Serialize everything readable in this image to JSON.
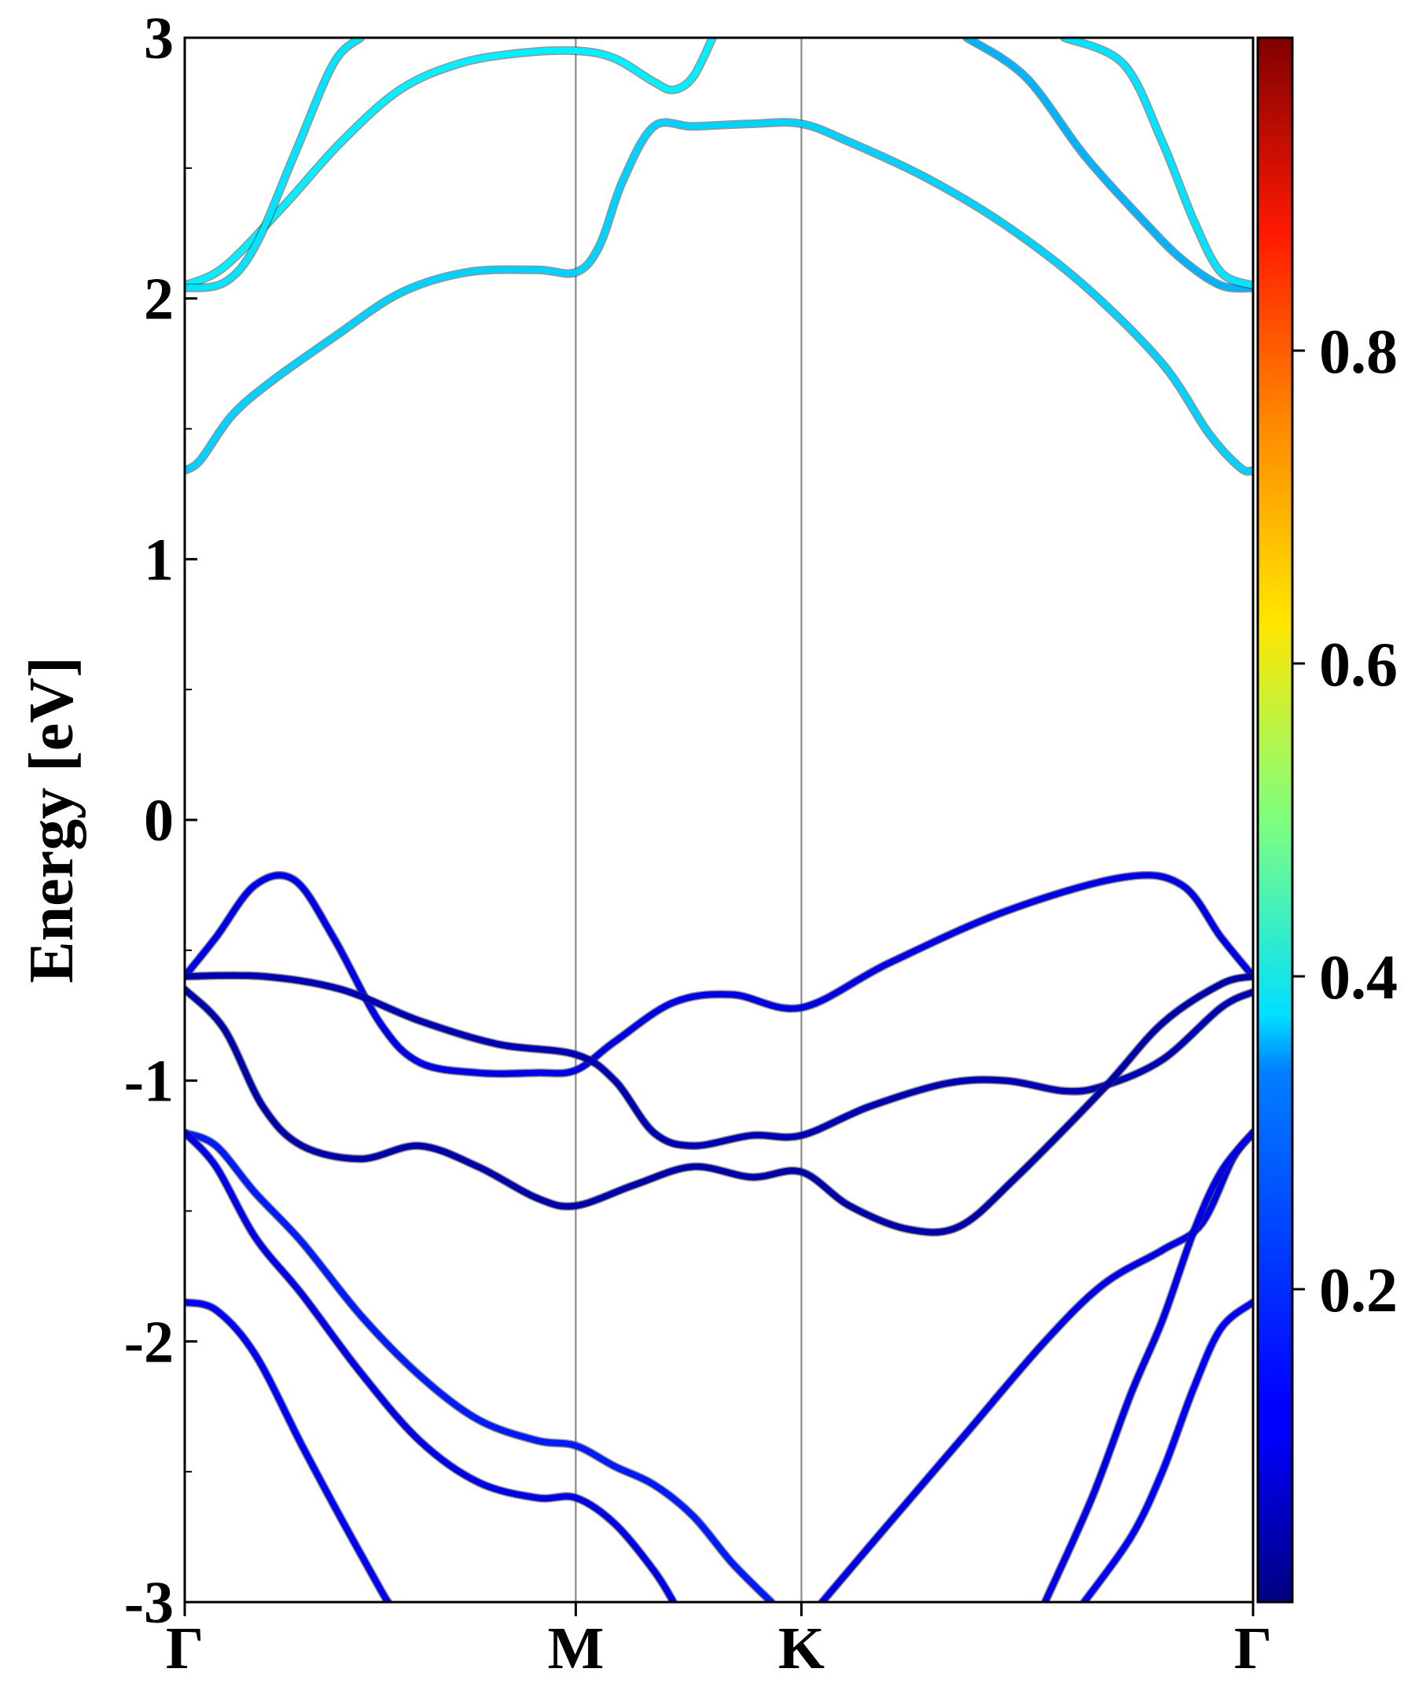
{
  "chart_data": {
    "type": "line",
    "title": "",
    "xlabel": "",
    "ylabel": "Energy [eV]",
    "ylim": [
      -3,
      3
    ],
    "yticks": [
      -3,
      -2,
      -1,
      0,
      1,
      2,
      3
    ],
    "yticklabels": [
      "-3",
      "-2",
      "-1",
      "0",
      "1",
      "2",
      "3"
    ],
    "xticks": [
      0,
      1,
      1.577,
      2.732
    ],
    "xticklabels": [
      "Γ",
      "M",
      "K",
      "Γ"
    ],
    "xlim": [
      0,
      2.732
    ],
    "grid": false,
    "vlines_at": [
      1,
      1.577
    ],
    "colorbar": {
      "colormap": "jet",
      "range": [
        0,
        1
      ],
      "ticks": [
        0.2,
        0.4,
        0.6,
        0.8
      ],
      "ticklabels": [
        "0.2",
        "0.4",
        "0.6",
        "0.8"
      ]
    },
    "series": [
      {
        "color_value": 0.33,
        "points": [
          [
            0,
            1.34
          ],
          [
            0.04,
            1.38
          ],
          [
            0.12,
            1.55
          ],
          [
            0.22,
            1.68
          ],
          [
            0.38,
            1.85
          ],
          [
            0.55,
            2.02
          ],
          [
            0.72,
            2.1
          ],
          [
            0.9,
            2.11
          ],
          [
            1.0,
            2.1
          ],
          [
            1.06,
            2.2
          ],
          [
            1.12,
            2.45
          ],
          [
            1.2,
            2.66
          ],
          [
            1.3,
            2.66
          ],
          [
            1.45,
            2.67
          ],
          [
            1.577,
            2.67
          ],
          [
            1.7,
            2.6
          ],
          [
            1.9,
            2.46
          ],
          [
            2.1,
            2.28
          ],
          [
            2.3,
            2.05
          ],
          [
            2.5,
            1.75
          ],
          [
            2.62,
            1.48
          ],
          [
            2.7,
            1.35
          ],
          [
            2.732,
            1.34
          ]
        ]
      },
      {
        "color_value": 0.36,
        "points": [
          [
            0,
            2.05
          ],
          [
            0.1,
            2.12
          ],
          [
            0.25,
            2.35
          ],
          [
            0.4,
            2.6
          ],
          [
            0.55,
            2.8
          ],
          [
            0.7,
            2.9
          ],
          [
            0.85,
            2.94
          ],
          [
            1.0,
            2.95
          ],
          [
            1.1,
            2.92
          ],
          [
            1.2,
            2.83
          ],
          [
            1.25,
            2.8
          ],
          [
            1.3,
            2.85
          ],
          [
            1.35,
            3.0
          ]
        ]
      },
      {
        "color_value": 0.35,
        "points": [
          [
            0,
            2.04
          ],
          [
            0.1,
            2.06
          ],
          [
            0.18,
            2.2
          ],
          [
            0.28,
            2.55
          ],
          [
            0.38,
            2.9
          ],
          [
            0.45,
            3.0
          ]
        ]
      },
      {
        "color_value": 0.3,
        "points": [
          [
            2.0,
            3.0
          ],
          [
            2.15,
            2.85
          ],
          [
            2.3,
            2.55
          ],
          [
            2.45,
            2.3
          ],
          [
            2.55,
            2.15
          ],
          [
            2.65,
            2.05
          ],
          [
            2.732,
            2.04
          ]
        ]
      },
      {
        "color_value": 0.35,
        "points": [
          [
            2.25,
            3.0
          ],
          [
            2.4,
            2.9
          ],
          [
            2.5,
            2.6
          ],
          [
            2.58,
            2.3
          ],
          [
            2.65,
            2.1
          ],
          [
            2.732,
            2.05
          ]
        ]
      },
      {
        "color_value": 0.1,
        "points": [
          [
            0,
            -0.6
          ],
          [
            0.08,
            -0.45
          ],
          [
            0.18,
            -0.25
          ],
          [
            0.28,
            -0.23
          ],
          [
            0.38,
            -0.45
          ],
          [
            0.5,
            -0.78
          ],
          [
            0.6,
            -0.93
          ],
          [
            0.75,
            -0.97
          ],
          [
            0.9,
            -0.97
          ],
          [
            1.0,
            -0.96
          ],
          [
            1.1,
            -0.85
          ],
          [
            1.25,
            -0.7
          ],
          [
            1.4,
            -0.67
          ],
          [
            1.577,
            -0.72
          ],
          [
            1.8,
            -0.55
          ],
          [
            2.1,
            -0.35
          ],
          [
            2.4,
            -0.22
          ],
          [
            2.55,
            -0.25
          ],
          [
            2.65,
            -0.45
          ],
          [
            2.732,
            -0.6
          ]
        ]
      },
      {
        "color_value": 0.05,
        "points": [
          [
            0,
            -0.6
          ],
          [
            0.2,
            -0.6
          ],
          [
            0.4,
            -0.65
          ],
          [
            0.6,
            -0.77
          ],
          [
            0.8,
            -0.86
          ],
          [
            1.0,
            -0.9
          ],
          [
            1.1,
            -1.0
          ],
          [
            1.2,
            -1.2
          ],
          [
            1.3,
            -1.25
          ],
          [
            1.45,
            -1.21
          ],
          [
            1.577,
            -1.21
          ],
          [
            1.75,
            -1.1
          ],
          [
            1.95,
            -1.01
          ],
          [
            2.1,
            -1.0
          ],
          [
            2.25,
            -1.04
          ],
          [
            2.35,
            -1.02
          ],
          [
            2.5,
            -0.92
          ],
          [
            2.65,
            -0.72
          ],
          [
            2.732,
            -0.66
          ]
        ]
      },
      {
        "color_value": 0.04,
        "points": [
          [
            0,
            -0.65
          ],
          [
            0.1,
            -0.8
          ],
          [
            0.2,
            -1.1
          ],
          [
            0.3,
            -1.25
          ],
          [
            0.45,
            -1.3
          ],
          [
            0.6,
            -1.25
          ],
          [
            0.75,
            -1.33
          ],
          [
            0.9,
            -1.45
          ],
          [
            1.0,
            -1.48
          ],
          [
            1.15,
            -1.4
          ],
          [
            1.3,
            -1.33
          ],
          [
            1.45,
            -1.37
          ],
          [
            1.577,
            -1.35
          ],
          [
            1.7,
            -1.48
          ],
          [
            1.85,
            -1.57
          ],
          [
            1.98,
            -1.56
          ],
          [
            2.12,
            -1.38
          ],
          [
            2.35,
            -1.03
          ],
          [
            2.5,
            -0.78
          ],
          [
            2.65,
            -0.63
          ],
          [
            2.732,
            -0.6
          ]
        ]
      },
      {
        "color_value": 0.15,
        "points": [
          [
            0,
            -1.2
          ],
          [
            0.08,
            -1.25
          ],
          [
            0.18,
            -1.43
          ],
          [
            0.3,
            -1.62
          ],
          [
            0.45,
            -1.9
          ],
          [
            0.6,
            -2.13
          ],
          [
            0.75,
            -2.3
          ],
          [
            0.9,
            -2.38
          ],
          [
            1.0,
            -2.4
          ],
          [
            1.1,
            -2.48
          ],
          [
            1.2,
            -2.55
          ],
          [
            1.3,
            -2.67
          ],
          [
            1.4,
            -2.85
          ],
          [
            1.5,
            -3.0
          ]
        ]
      },
      {
        "color_value": 0.1,
        "points": [
          [
            0,
            -1.2
          ],
          [
            0.08,
            -1.33
          ],
          [
            0.18,
            -1.6
          ],
          [
            0.3,
            -1.82
          ],
          [
            0.45,
            -2.12
          ],
          [
            0.6,
            -2.38
          ],
          [
            0.75,
            -2.54
          ],
          [
            0.9,
            -2.6
          ],
          [
            1.0,
            -2.6
          ],
          [
            1.1,
            -2.7
          ],
          [
            1.2,
            -2.88
          ],
          [
            1.25,
            -3.0
          ]
        ]
      },
      {
        "color_value": 0.12,
        "points": [
          [
            0,
            -1.85
          ],
          [
            0.08,
            -1.88
          ],
          [
            0.18,
            -2.05
          ],
          [
            0.3,
            -2.4
          ],
          [
            0.4,
            -2.68
          ],
          [
            0.5,
            -2.95
          ],
          [
            0.52,
            -3.0
          ]
        ]
      },
      {
        "color_value": 0.1,
        "points": [
          [
            1.63,
            -3.0
          ],
          [
            1.8,
            -2.7
          ],
          [
            2.0,
            -2.35
          ],
          [
            2.2,
            -2.0
          ],
          [
            2.35,
            -1.78
          ],
          [
            2.5,
            -1.65
          ],
          [
            2.6,
            -1.55
          ],
          [
            2.68,
            -1.3
          ],
          [
            2.732,
            -1.2
          ]
        ]
      },
      {
        "color_value": 0.1,
        "points": [
          [
            2.2,
            -3.0
          ],
          [
            2.32,
            -2.6
          ],
          [
            2.42,
            -2.2
          ],
          [
            2.5,
            -1.92
          ],
          [
            2.58,
            -1.58
          ],
          [
            2.65,
            -1.35
          ],
          [
            2.732,
            -1.2
          ]
        ]
      },
      {
        "color_value": 0.12,
        "points": [
          [
            2.3,
            -3.0
          ],
          [
            2.42,
            -2.75
          ],
          [
            2.5,
            -2.5
          ],
          [
            2.58,
            -2.18
          ],
          [
            2.65,
            -1.95
          ],
          [
            2.732,
            -1.85
          ]
        ]
      }
    ]
  }
}
